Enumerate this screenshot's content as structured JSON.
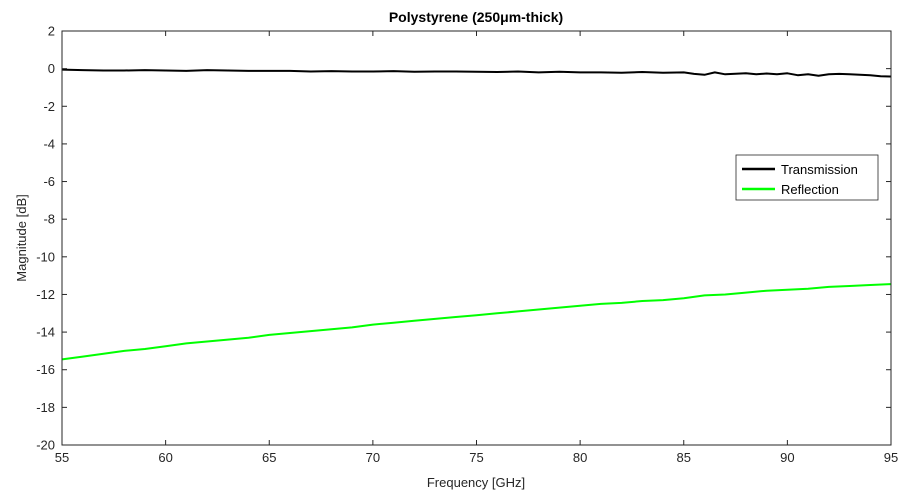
{
  "chart_data": {
    "type": "line",
    "title": "Polystyrene (250μm-thick)",
    "xlabel": "Frequency [GHz]",
    "ylabel": "Magnitude [dB]",
    "xlim": [
      55,
      95
    ],
    "ylim": [
      -20,
      2
    ],
    "xticks": [
      55,
      60,
      65,
      70,
      75,
      80,
      85,
      90,
      95
    ],
    "yticks": [
      2,
      0,
      -2,
      -4,
      -6,
      -8,
      -10,
      -12,
      -14,
      -16,
      -18,
      -20
    ],
    "grid": false,
    "legend_position": "right",
    "series": [
      {
        "name": "Transmission",
        "color": "#000000",
        "x": [
          55,
          56,
          57,
          58,
          59,
          60,
          61,
          62,
          63,
          64,
          65,
          66,
          67,
          68,
          69,
          70,
          71,
          72,
          73,
          74,
          75,
          76,
          77,
          78,
          79,
          80,
          81,
          82,
          83,
          84,
          85,
          85.5,
          86,
          86.5,
          87,
          87.5,
          88,
          88.5,
          89,
          89.5,
          90,
          90.5,
          91,
          91.5,
          92,
          92.5,
          93,
          93.5,
          94,
          94.5,
          95
        ],
        "y": [
          -0.05,
          -0.08,
          -0.1,
          -0.1,
          -0.08,
          -0.1,
          -0.12,
          -0.08,
          -0.1,
          -0.12,
          -0.12,
          -0.12,
          -0.15,
          -0.13,
          -0.15,
          -0.15,
          -0.13,
          -0.17,
          -0.15,
          -0.15,
          -0.17,
          -0.18,
          -0.15,
          -0.2,
          -0.17,
          -0.2,
          -0.2,
          -0.22,
          -0.18,
          -0.22,
          -0.2,
          -0.28,
          -0.33,
          -0.2,
          -0.3,
          -0.27,
          -0.25,
          -0.3,
          -0.26,
          -0.3,
          -0.25,
          -0.35,
          -0.3,
          -0.38,
          -0.3,
          -0.28,
          -0.3,
          -0.33,
          -0.35,
          -0.4,
          -0.42
        ]
      },
      {
        "name": "Reflection",
        "color": "#00ff00",
        "x": [
          55,
          56,
          57,
          58,
          59,
          60,
          61,
          62,
          63,
          64,
          65,
          66,
          67,
          68,
          69,
          70,
          71,
          72,
          73,
          74,
          75,
          76,
          77,
          78,
          79,
          80,
          81,
          82,
          83,
          84,
          85,
          86,
          87,
          88,
          89,
          90,
          91,
          92,
          93,
          94,
          95
        ],
        "y": [
          -15.45,
          -15.3,
          -15.15,
          -15.0,
          -14.9,
          -14.75,
          -14.6,
          -14.5,
          -14.4,
          -14.3,
          -14.15,
          -14.05,
          -13.95,
          -13.85,
          -13.75,
          -13.6,
          -13.5,
          -13.4,
          -13.3,
          -13.2,
          -13.1,
          -13.0,
          -12.9,
          -12.8,
          -12.7,
          -12.6,
          -12.5,
          -12.45,
          -12.35,
          -12.3,
          -12.2,
          -12.05,
          -12.0,
          -11.9,
          -11.8,
          -11.75,
          -11.7,
          -11.6,
          -11.55,
          -11.5,
          -11.45
        ]
      }
    ]
  }
}
